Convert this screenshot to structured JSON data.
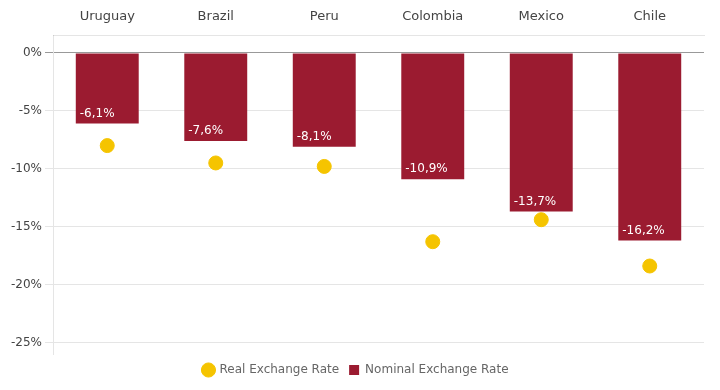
{
  "chart_data": {
    "type": "bar",
    "categories": [
      "Uruguay",
      "Brazil",
      "Peru",
      "Colombia",
      "Mexico",
      "Chile"
    ],
    "series": [
      {
        "name": "Nominal Exchange Rate",
        "type": "bar",
        "color": "#9B1B30",
        "values": [
          -6.1,
          -7.6,
          -8.1,
          -10.9,
          -13.7,
          -16.2
        ],
        "value_labels": [
          "-6,1%",
          "-7,6%",
          "-8,1%",
          "-10,9%",
          "-13,7%",
          "-16,2%"
        ]
      },
      {
        "name": "Real Exchange Rate",
        "type": "scatter",
        "color": "#F5C400",
        "marker": "circle",
        "values": [
          -8.0,
          -9.5,
          -9.8,
          -16.3,
          -14.4,
          -18.4
        ]
      }
    ],
    "ylim": [
      -26,
      1.5
    ],
    "yticks": [
      {
        "value": 0,
        "label": "0%"
      },
      {
        "value": -5,
        "label": "-5%"
      },
      {
        "value": -10,
        "label": "-10%"
      },
      {
        "value": -15,
        "label": "-15%"
      },
      {
        "value": -20,
        "label": "-20%"
      },
      {
        "value": -25,
        "label": "-25%"
      }
    ],
    "grid": true,
    "legend": "bottom",
    "data_labels": true
  }
}
